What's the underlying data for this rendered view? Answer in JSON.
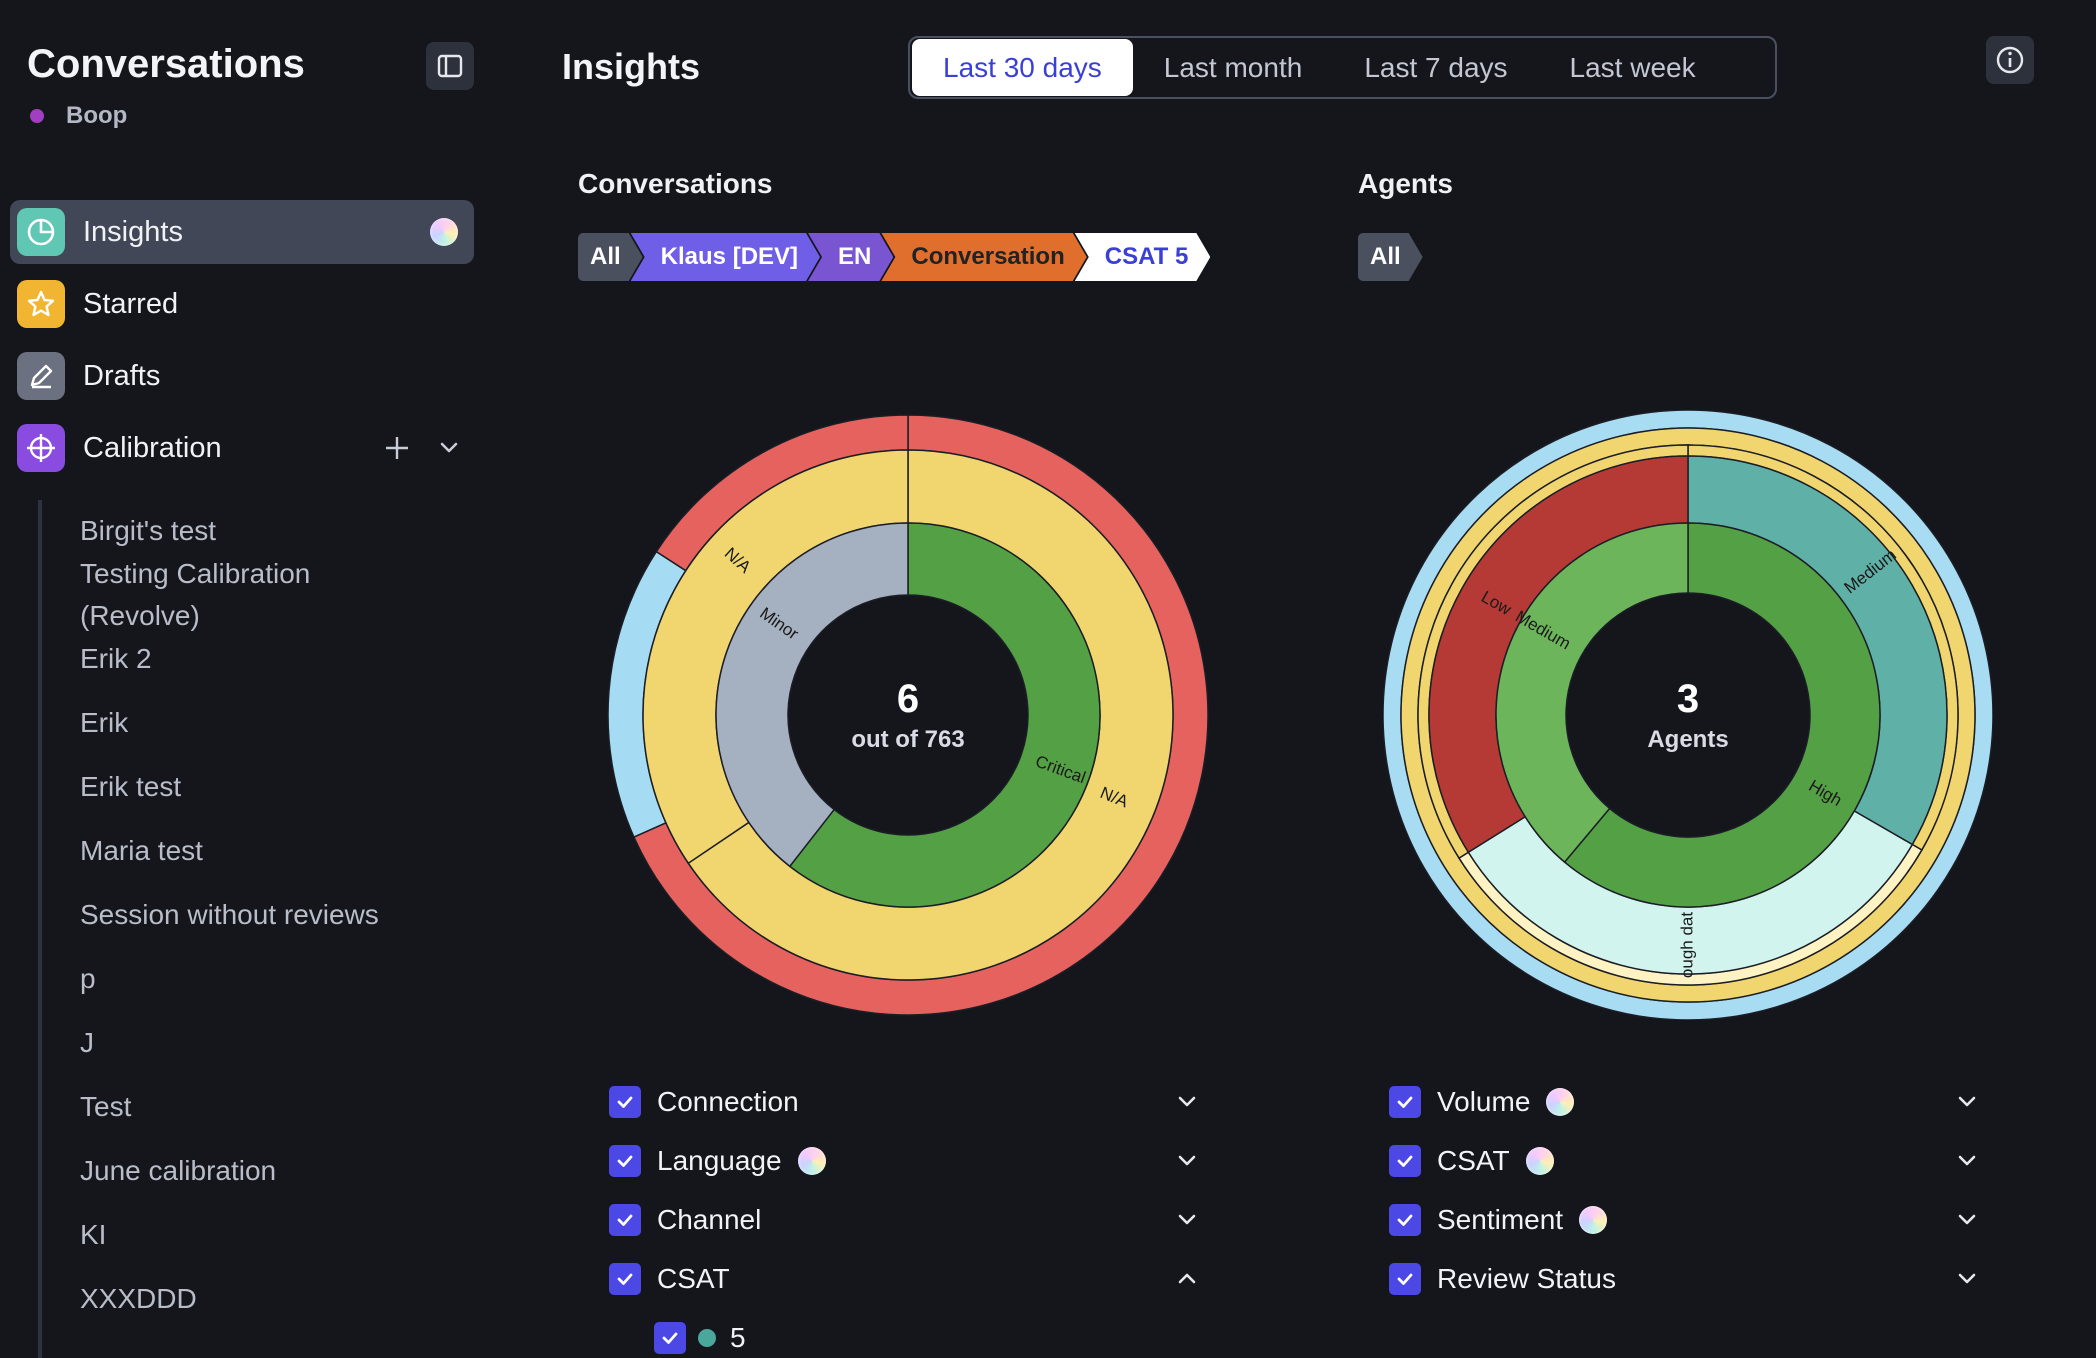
{
  "sidebar": {
    "title": "Conversations",
    "workspace": "Boop",
    "nav": [
      {
        "label": "Insights"
      },
      {
        "label": "Starred"
      },
      {
        "label": "Drafts"
      },
      {
        "label": "Calibration"
      }
    ],
    "sessions": [
      "Birgit's test",
      "Testing Calibration",
      "(Revolve)",
      "Erik 2",
      "Erik",
      "Erik test",
      "Maria test",
      "Session without reviews",
      "p",
      "J",
      "Test",
      "June calibration",
      "KI",
      "XXXDDD"
    ]
  },
  "header": {
    "title": "Insights",
    "ranges": [
      "Last 30 days",
      "Last month",
      "Last 7 days",
      "Last week"
    ],
    "active_range": "Last 30 days"
  },
  "conversations": {
    "title": "Conversations",
    "crumbs": [
      "All",
      "Klaus [DEV]",
      "EN",
      "Conversation",
      "CSAT 5"
    ],
    "center_value": "6",
    "center_label_prefix": "out of",
    "center_label_total": "763",
    "filters": [
      "Connection",
      "Language",
      "Channel",
      "CSAT"
    ],
    "csat_option": "5"
  },
  "agents": {
    "title": "Agents",
    "crumbs": [
      "All"
    ],
    "center_value": "3",
    "center_label": "Agents",
    "filters": [
      "Volume",
      "CSAT",
      "Sentiment",
      "Review Status"
    ]
  },
  "colors": {
    "accent": "#4b48e6",
    "crumb_all": "#4a505d",
    "crumb_klaus": "#6f5fe6",
    "crumb_en": "#7a55d2",
    "crumb_conversation": "#e06f2e",
    "crumb_csat": "#ffffff"
  },
  "chart_data": [
    {
      "type": "sunburst",
      "name": "Conversations",
      "rings": [
        {
          "segments": [
            {
              "label": "N/A"
            },
            {
              "label": "Minor"
            },
            {
              "label": "Critical"
            },
            {
              "label": "N/A"
            }
          ]
        }
      ],
      "center": "6 out of 763"
    },
    {
      "type": "sunburst",
      "name": "Agents",
      "rings": [
        {
          "segments": [
            {
              "label": "Low"
            },
            {
              "label": "Medium"
            },
            {
              "label": "Medium"
            },
            {
              "label": "High"
            },
            {
              "label": "ough dat"
            }
          ]
        }
      ],
      "center": "3 Agents"
    }
  ]
}
